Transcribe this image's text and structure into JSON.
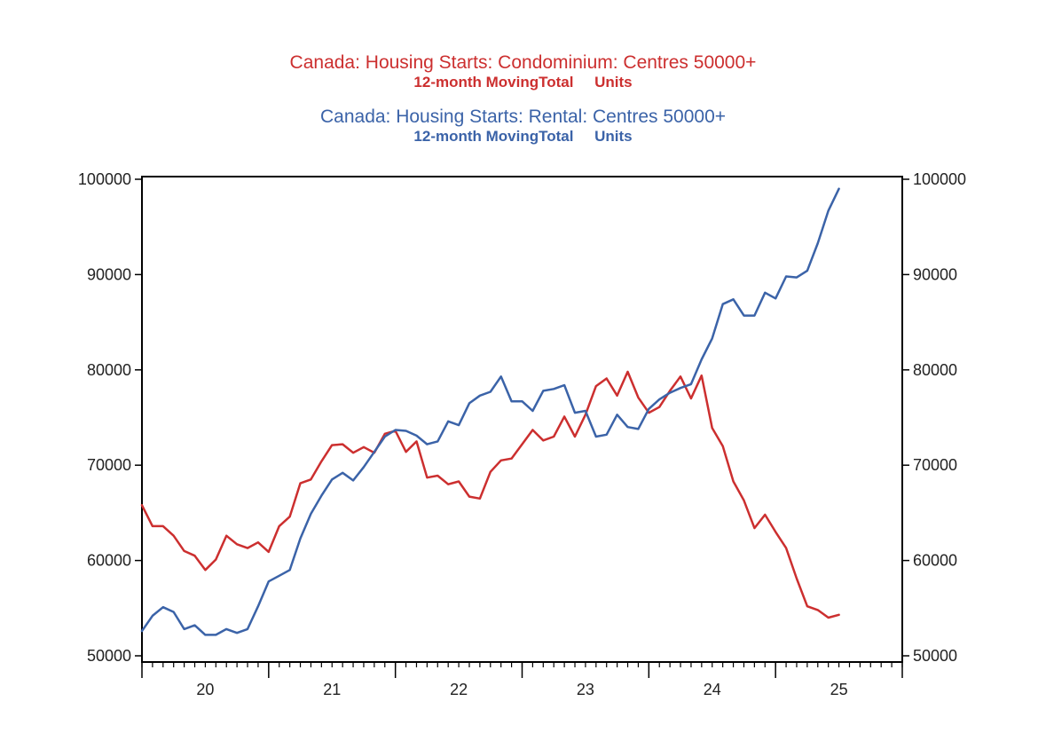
{
  "colors": {
    "condo": "#cc2f2f",
    "rental": "#3b63a8",
    "axis": "#000000",
    "text": "#222222"
  },
  "chart_data": {
    "type": "line",
    "title_lines": [
      {
        "main": "Canada: Housing Starts: Condominium: Centres 50000+",
        "sub": "12-month MovingTotal     Units",
        "series": "condo"
      },
      {
        "main": "Canada: Housing Starts: Rental: Centres 50000+",
        "sub": "12-month MovingTotal     Units",
        "series": "rental"
      }
    ],
    "xlabel": "",
    "ylabel": "",
    "xlim": [
      2019.5,
      2025.5
    ],
    "ylim": [
      50000,
      100000
    ],
    "yticks": [
      50000,
      60000,
      70000,
      80000,
      90000,
      100000
    ],
    "ytick_labels": [
      "50000",
      "60000",
      "70000",
      "80000",
      "90000",
      "100000"
    ],
    "xtick_years": [
      2020,
      2021,
      2022,
      2023,
      2024,
      2025
    ],
    "xtick_labels": [
      "20",
      "21",
      "22",
      "23",
      "24",
      "25"
    ],
    "x_start": 2019.5,
    "x_step": 0.0833333,
    "series": [
      {
        "name": "Condominium",
        "key": "condo",
        "values": [
          65800,
          63600,
          63600,
          62600,
          61000,
          60500,
          59000,
          60100,
          62600,
          61700,
          61300,
          61900,
          60900,
          63600,
          64600,
          68100,
          68500,
          70400,
          72100,
          72200,
          71300,
          71900,
          71300,
          73300,
          73600,
          71400,
          72500,
          68700,
          68900,
          68000,
          68300,
          66700,
          66500,
          69300,
          70500,
          70700,
          72200,
          73700,
          72600,
          73000,
          75100,
          73000,
          75300,
          78300,
          79100,
          77300,
          79800,
          77100,
          75500,
          76100,
          77800,
          79300,
          77000,
          79400,
          73900,
          72000,
          68300,
          66300,
          63400,
          64800,
          63000,
          61300,
          58100,
          55200,
          54800,
          54000,
          54300
        ]
      },
      {
        "name": "Rental",
        "key": "rental",
        "values": [
          52600,
          54200,
          55100,
          54600,
          52800,
          53200,
          52200,
          52200,
          52800,
          52400,
          52800,
          55200,
          57800,
          58400,
          59000,
          62300,
          64900,
          66800,
          68500,
          69200,
          68400,
          69800,
          71400,
          73000,
          73700,
          73600,
          73100,
          72200,
          72500,
          74600,
          74200,
          76500,
          77300,
          77700,
          79300,
          76700,
          76700,
          75700,
          77800,
          78000,
          78400,
          75500,
          75700,
          73000,
          73200,
          75300,
          74000,
          73800,
          75900,
          76900,
          77600,
          78100,
          78500,
          81100,
          83300,
          86900,
          87400,
          85700,
          85700,
          88100,
          87500,
          89800,
          89700,
          90400,
          93300,
          96700,
          99000
        ]
      }
    ]
  }
}
